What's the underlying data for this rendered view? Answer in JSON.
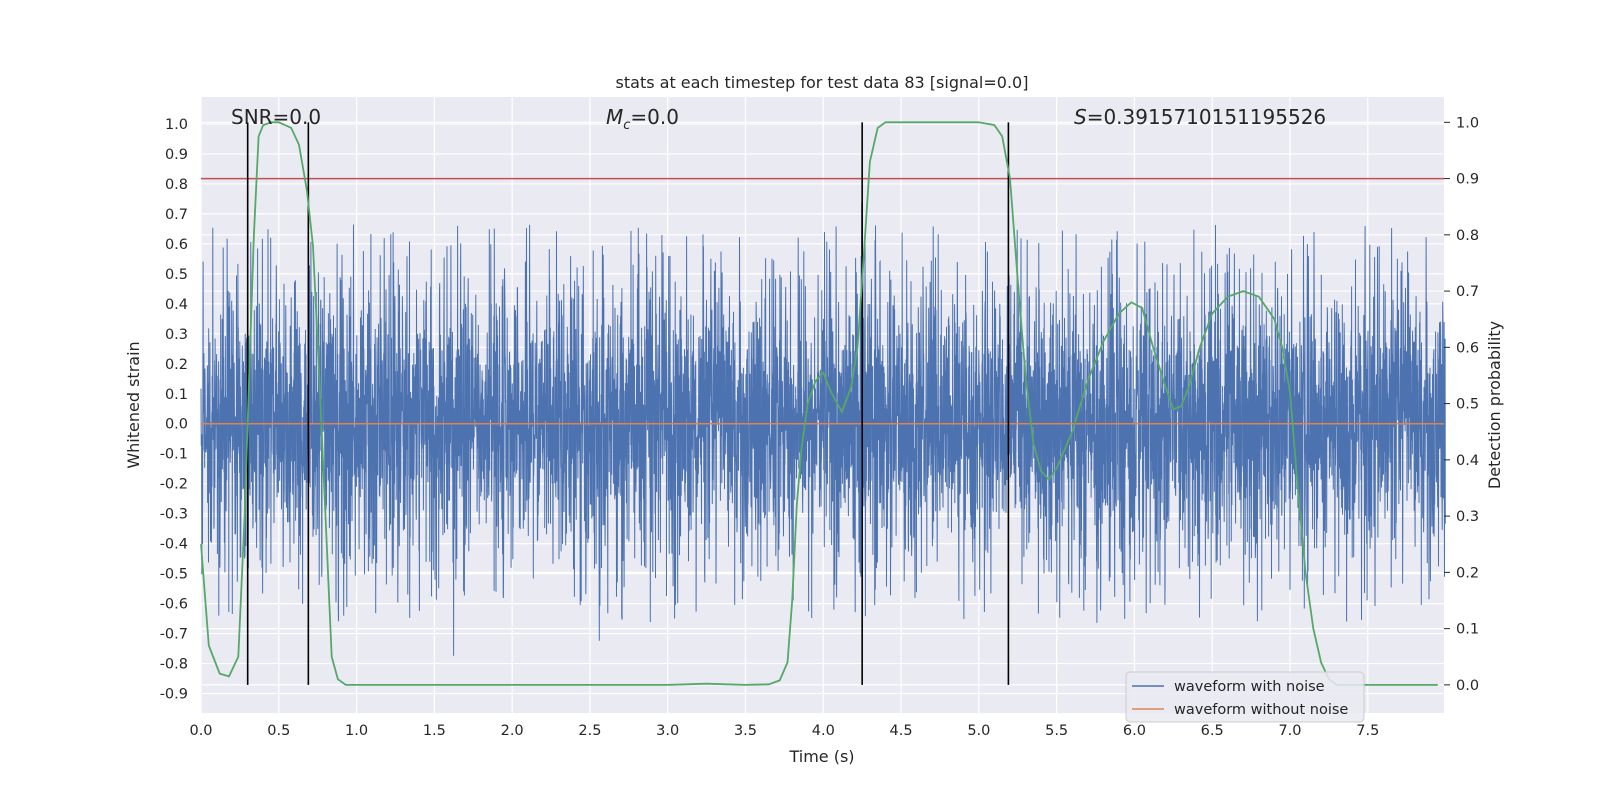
{
  "chart_data": {
    "type": "line",
    "title": "stats at each timestep for test data 83 [signal=0.0]",
    "xlabel": "Time (s)",
    "ylabel_left": "Whitened strain",
    "ylabel_right": "Detection probability",
    "xlim": [
      0.0,
      7.99
    ],
    "ylim_left": [
      -0.965,
      1.09
    ],
    "ylim_right": [
      -0.05,
      1.045
    ],
    "xticks": [
      "0.0",
      "0.5",
      "1.0",
      "1.5",
      "2.0",
      "2.5",
      "3.0",
      "3.5",
      "4.0",
      "4.5",
      "5.0",
      "5.5",
      "6.0",
      "6.5",
      "7.0",
      "7.5"
    ],
    "yticks_left": [
      "-0.9",
      "-0.8",
      "-0.7",
      "-0.6",
      "-0.5",
      "-0.4",
      "-0.3",
      "-0.2",
      "-0.1",
      "0.0",
      "0.1",
      "0.2",
      "0.3",
      "0.4",
      "0.5",
      "0.6",
      "0.7",
      "0.8",
      "0.9",
      "1.0"
    ],
    "yticks_right": [
      "0.0",
      "0.1",
      "0.2",
      "0.3",
      "0.4",
      "0.5",
      "0.6",
      "0.7",
      "0.8",
      "0.9",
      "1.0"
    ],
    "grid": true,
    "legend_position": "lower-right",
    "annotations": {
      "snr": "SNR=0.0",
      "mc_symbol": "M",
      "mc_sub": "c",
      "mc_value": "=0.0",
      "s_symbol": "S",
      "s_value": "=0.3915710151195526"
    },
    "threshold": {
      "y_right": 0.9,
      "color": "#c44e52"
    },
    "vertical_markers_x": [
      0.3,
      0.69,
      4.25,
      5.19
    ],
    "series": [
      {
        "name": "waveform with noise",
        "color": "#4c72b0",
        "axis": "left",
        "noise": {
          "duration_s": 8.0,
          "core_amplitude": 0.35,
          "peak_amplitude": 1.0
        }
      },
      {
        "name": "waveform without noise",
        "color": "#dd8452",
        "axis": "left",
        "x": [
          0.0,
          7.99
        ],
        "y": [
          0.0,
          0.0
        ]
      },
      {
        "name": "detection probability",
        "color": "#55a868",
        "axis": "right",
        "x": [
          0.0,
          0.05,
          0.12,
          0.18,
          0.24,
          0.28,
          0.31,
          0.34,
          0.37,
          0.4,
          0.45,
          0.5,
          0.58,
          0.63,
          0.68,
          0.72,
          0.76,
          0.8,
          0.84,
          0.88,
          0.93,
          1.0,
          1.5,
          2.0,
          2.5,
          3.0,
          3.25,
          3.5,
          3.65,
          3.72,
          3.77,
          3.8,
          3.83,
          3.86,
          3.9,
          3.95,
          4.0,
          4.05,
          4.12,
          4.18,
          4.22,
          4.25,
          4.3,
          4.35,
          4.4,
          4.5,
          4.7,
          5.0,
          5.1,
          5.15,
          5.2,
          5.25,
          5.3,
          5.35,
          5.4,
          5.45,
          5.5,
          5.6,
          5.7,
          5.8,
          5.9,
          5.98,
          6.05,
          6.12,
          6.2,
          6.25,
          6.3,
          6.35,
          6.42,
          6.5,
          6.6,
          6.7,
          6.8,
          6.9,
          6.95,
          7.0,
          7.05,
          7.1,
          7.15,
          7.2,
          7.25,
          7.3,
          7.5,
          7.95
        ],
        "y": [
          0.25,
          0.07,
          0.02,
          0.015,
          0.05,
          0.3,
          0.55,
          0.8,
          0.975,
          0.995,
          1.0,
          1.0,
          0.99,
          0.96,
          0.88,
          0.78,
          0.55,
          0.3,
          0.05,
          0.01,
          0.0,
          0.0,
          0.0,
          0.0,
          0.0,
          0.0,
          0.002,
          0.0,
          0.001,
          0.008,
          0.04,
          0.15,
          0.32,
          0.42,
          0.5,
          0.54,
          0.555,
          0.52,
          0.485,
          0.53,
          0.6,
          0.72,
          0.93,
          0.99,
          1.0,
          1.0,
          1.0,
          1.0,
          0.995,
          0.975,
          0.9,
          0.72,
          0.55,
          0.43,
          0.38,
          0.365,
          0.385,
          0.45,
          0.54,
          0.61,
          0.66,
          0.68,
          0.67,
          0.6,
          0.53,
          0.49,
          0.495,
          0.53,
          0.6,
          0.66,
          0.69,
          0.7,
          0.69,
          0.65,
          0.6,
          0.52,
          0.35,
          0.2,
          0.1,
          0.04,
          0.01,
          0.0,
          0.0,
          0.0
        ]
      }
    ]
  }
}
